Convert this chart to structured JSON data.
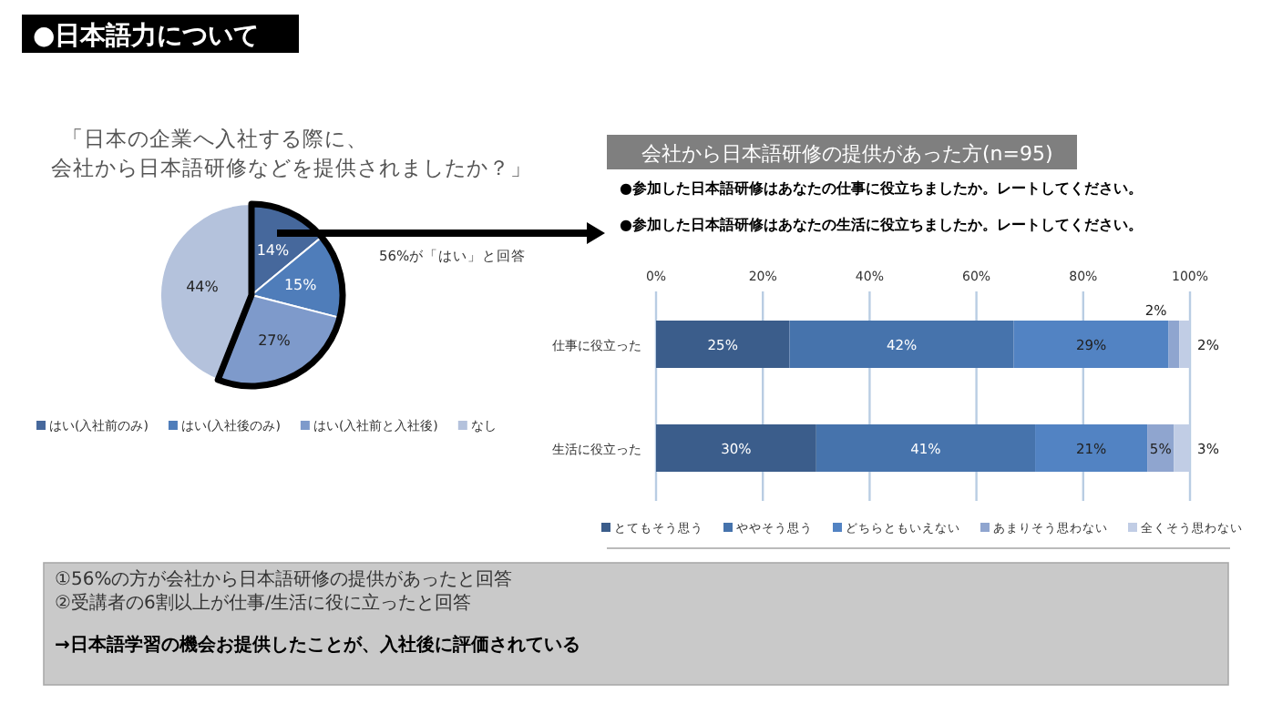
{
  "chart_data": [
    {
      "type": "pie",
      "title": "「日本の企業へ入社する際に、",
      "subtitle": "会社から日本語研修などを提供されましたか？」",
      "value_labels": [
        "14%",
        "15%",
        "27%",
        "44%"
      ],
      "annotations": [
        "●日本語力について",
        "56%が「はい」と回答"
      ],
      "categories": [
        "はい(入社前のみ)",
        "はい(入社後のみ)",
        "はい(入社前と入社後)",
        "なし"
      ],
      "values": [
        14,
        15,
        27,
        44
      ],
      "colors": [
        "#46689c",
        "#4f7dba",
        "#7e9acb",
        "#b4c2dc"
      ],
      "legend": "bottom"
    },
    {
      "type": "bar",
      "orientation": "horizontal",
      "stacked": true,
      "title": "会社から日本語研修の提供があった方(n=95)",
      "annotations": [
        "●参加した日本語研修はあなたの仕事に役立ちましたか。レートしてください。",
        "●参加した日本語研修はあなたの生活に役立ちましたか。レートしてください。",
        "①56%の方が会社から日本語研修の提供があったと回答",
        "②受講者の6割以上が仕事/生活に役に立ったと回答",
        "→日本語学習の機会お提供したことが、入社後に評価されている"
      ],
      "categories": [
        "仕事に役立った",
        "生活に役立った"
      ],
      "series": [
        {
          "name": "とてもそう思う",
          "color": "#3b5d8b",
          "values": [
            25,
            30
          ],
          "value_labels": [
            "25%",
            "30%"
          ]
        },
        {
          "name": "ややそう思う",
          "color": "#4673ac",
          "values": [
            42,
            41
          ],
          "value_labels": [
            "42%",
            "41%"
          ]
        },
        {
          "name": "どちらともいえない",
          "color": "#5283c3",
          "values": [
            29,
            21
          ],
          "value_labels": [
            "29%",
            "21%"
          ]
        },
        {
          "name": "あまりそう思わない",
          "color": "#8fa5cf",
          "values": [
            2,
            5
          ],
          "value_labels": [
            "2%",
            "5%"
          ]
        },
        {
          "name": "全くそう思わない",
          "color": "#c1cde5",
          "values": [
            2,
            3
          ],
          "value_labels": [
            "2%",
            "3%"
          ]
        }
      ],
      "xlim": [
        0,
        100
      ],
      "xticks": [
        {
          "value": 0,
          "label": "0%"
        },
        {
          "value": 20,
          "label": "20%"
        },
        {
          "value": 40,
          "label": "40%"
        },
        {
          "value": 60,
          "label": "60%"
        },
        {
          "value": 80,
          "label": "80%"
        },
        {
          "value": 100,
          "label": "100%"
        }
      ],
      "grid": "x",
      "legend": "bottom"
    }
  ]
}
